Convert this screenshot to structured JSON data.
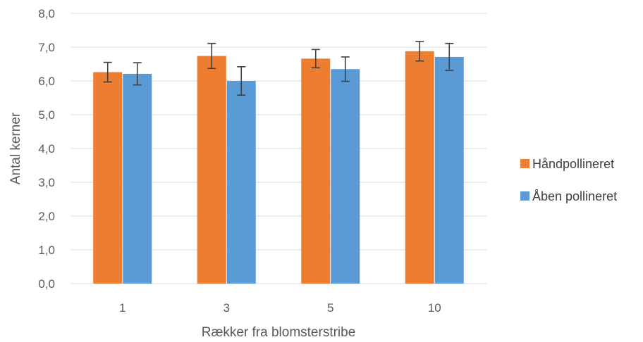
{
  "chart_data": {
    "type": "bar",
    "title": "",
    "xlabel": "Rækker fra blomsterstribe",
    "ylabel": "Antal kerner",
    "categories": [
      "1",
      "3",
      "5",
      "10"
    ],
    "ylim": [
      0,
      8
    ],
    "yticks": [
      "0,0",
      "1,0",
      "2,0",
      "3,0",
      "4,0",
      "5,0",
      "6,0",
      "7,0",
      "8,0"
    ],
    "grid": true,
    "legend_position": "right",
    "series": [
      {
        "name": "Håndpollineret",
        "color": "#ED7D31",
        "values": [
          6.26,
          6.74,
          6.66,
          6.88
        ],
        "error": [
          0.29,
          0.37,
          0.27,
          0.29
        ]
      },
      {
        "name": "Åben pollineret",
        "color": "#5B9BD5",
        "values": [
          6.21,
          6.0,
          6.35,
          6.71
        ],
        "error": [
          0.33,
          0.42,
          0.36,
          0.4
        ]
      }
    ]
  }
}
